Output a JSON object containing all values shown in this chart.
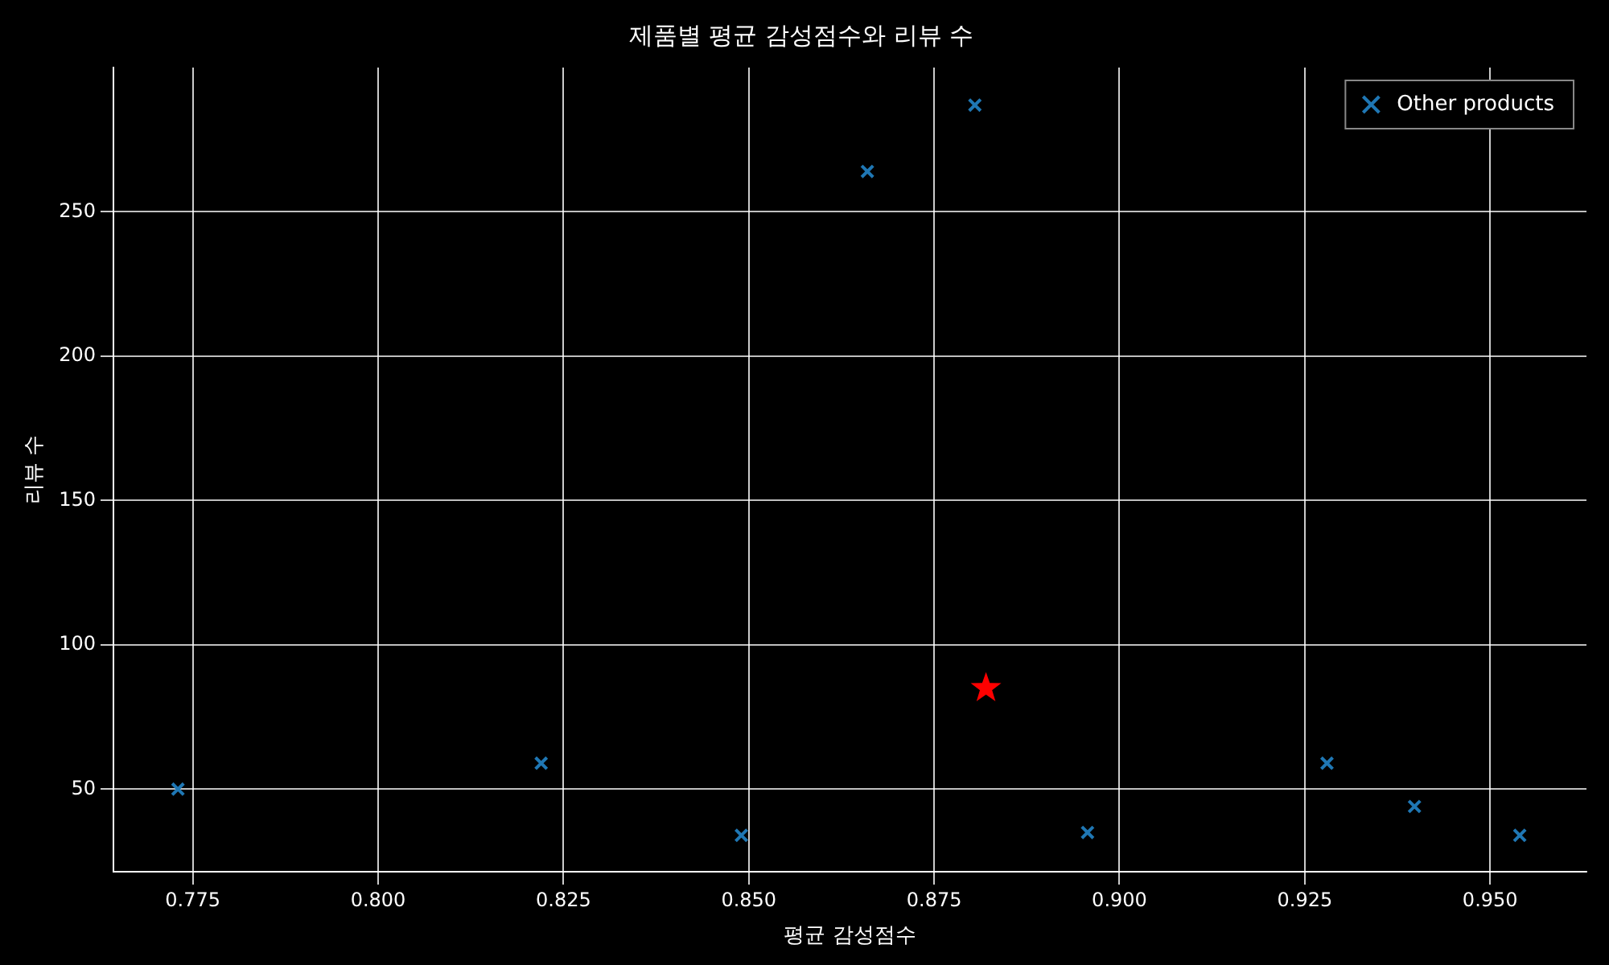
{
  "chart_data": {
    "type": "scatter",
    "title": "제품별 평균 감성점수와 리뷰 수",
    "xlabel": "평균 감성점수",
    "ylabel": "리뷰 수",
    "xlim": [
      0.7643,
      0.963
    ],
    "ylim": [
      21.4,
      300
    ],
    "xticks": [
      {
        "value": 0.775,
        "label": "0.775"
      },
      {
        "value": 0.8,
        "label": "0.800"
      },
      {
        "value": 0.825,
        "label": "0.825"
      },
      {
        "value": 0.85,
        "label": "0.850"
      },
      {
        "value": 0.875,
        "label": "0.875"
      },
      {
        "value": 0.9,
        "label": "0.900"
      },
      {
        "value": 0.925,
        "label": "0.925"
      },
      {
        "value": 0.95,
        "label": "0.950"
      }
    ],
    "yticks": [
      50,
      100,
      150,
      200,
      250
    ],
    "grid": true,
    "legend": "top right",
    "series": [
      {
        "name": "Other products",
        "color": "#1f77b4",
        "marker": "cross",
        "x": [
          0.773,
          0.822,
          0.849,
          0.866,
          0.8805,
          0.8957,
          0.928,
          0.9398,
          0.954
        ],
        "values": [
          50,
          59,
          34,
          264,
          287,
          35,
          59,
          44,
          34
        ]
      },
      {
        "color": "#ff0000",
        "marker": "star",
        "x": [
          0.882
        ],
        "values": [
          85
        ]
      }
    ]
  }
}
